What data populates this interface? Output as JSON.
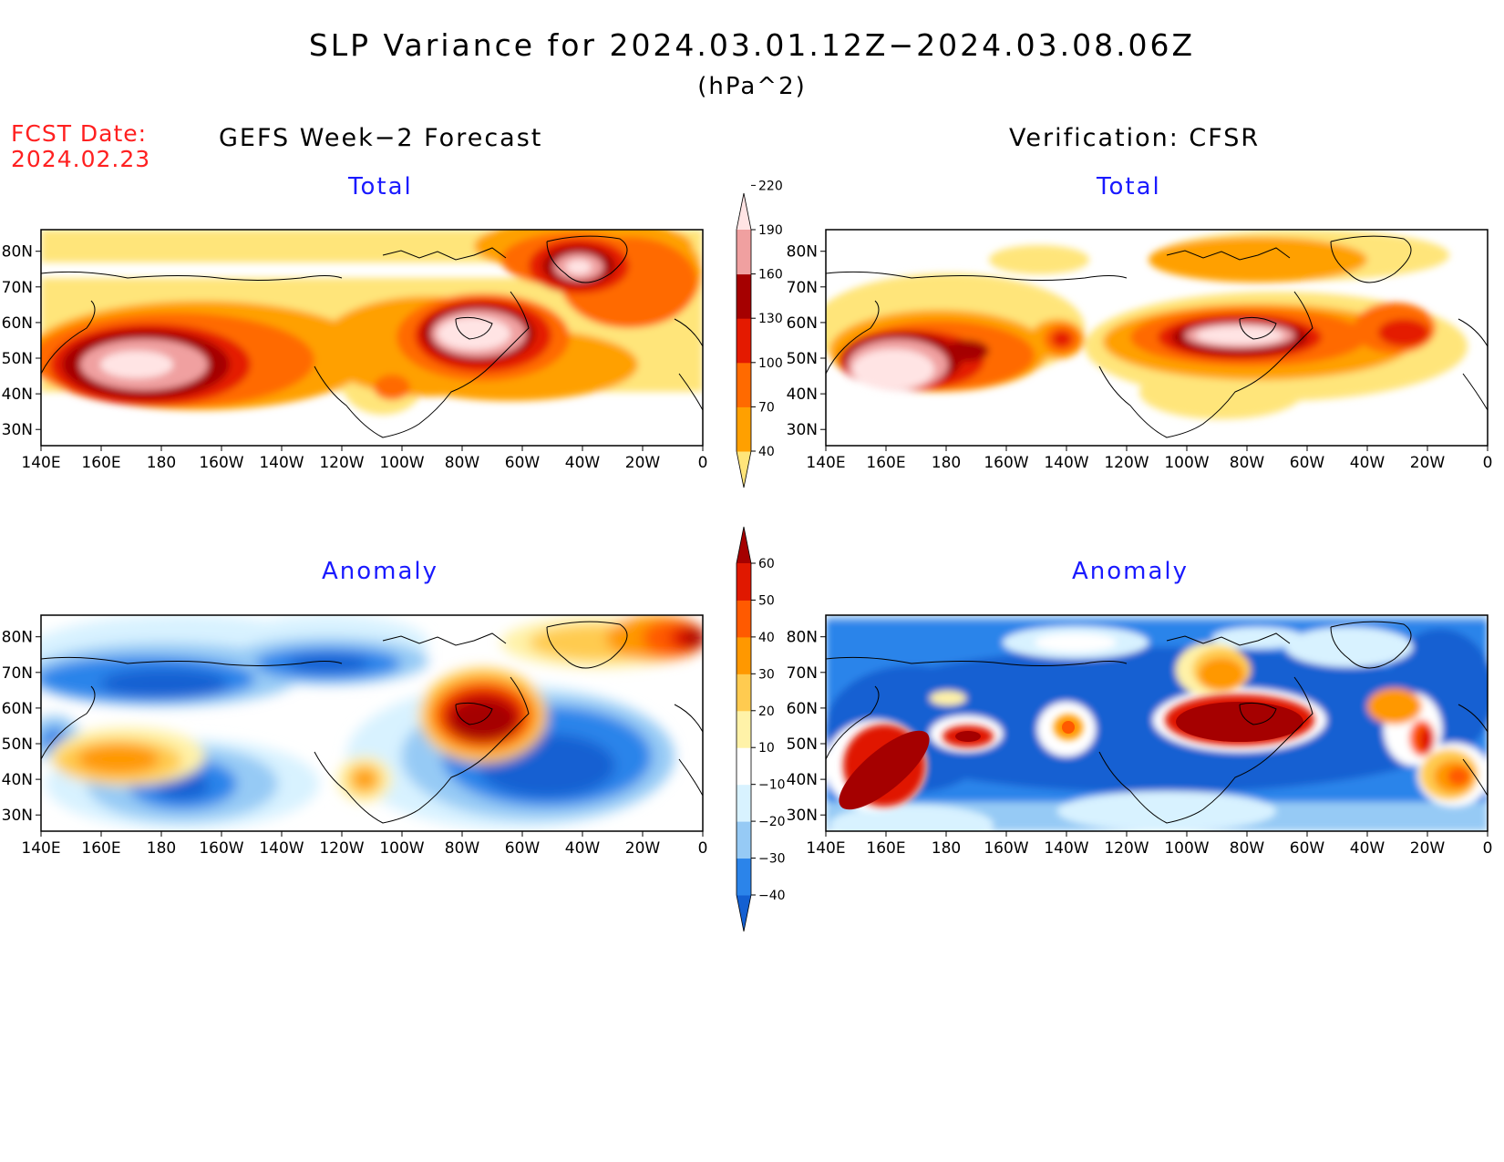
{
  "title": "SLP Variance for 2024.03.01.12Z−2024.03.08.06Z",
  "units": "(hPa^2)",
  "fcst_date_label": "FCST Date:",
  "fcst_date_value": "2024.02.23",
  "left_header": "GEFS Week−2 Forecast",
  "right_header": "Verification: CFSR",
  "panels": [
    {
      "id": "gefs-total",
      "label": "Total"
    },
    {
      "id": "cfsr-total",
      "label": "Total"
    },
    {
      "id": "gefs-anomaly",
      "label": "Anomaly"
    },
    {
      "id": "cfsr-anomaly",
      "label": "Anomaly"
    }
  ],
  "lon_ticks": [
    "140E",
    "160E",
    "180",
    "160W",
    "140W",
    "120W",
    "100W",
    "80W",
    "60W",
    "40W",
    "20W",
    "0"
  ],
  "lat_ticks": [
    "30N",
    "40N",
    "50N",
    "60N",
    "70N",
    "80N"
  ],
  "total_scale": {
    "levels": [
      "40",
      "70",
      "100",
      "130",
      "160",
      "190",
      "220"
    ],
    "colors": [
      "#ffe57a",
      "#ffa000",
      "#ff6a00",
      "#e41a00",
      "#a50000",
      "#f0a0a0",
      "#ffe4e4"
    ]
  },
  "anomaly_scale": {
    "levels": [
      "−40",
      "−30",
      "−20",
      "−10",
      "10",
      "20",
      "30",
      "40",
      "50",
      "60"
    ],
    "colors": [
      "#1460d2",
      "#2b84ea",
      "#96caf5",
      "#d8f2ff",
      "#ffffff",
      "#fff2a8",
      "#ffcb50",
      "#ff9800",
      "#ff5a00",
      "#e01800",
      "#a50000"
    ]
  }
}
